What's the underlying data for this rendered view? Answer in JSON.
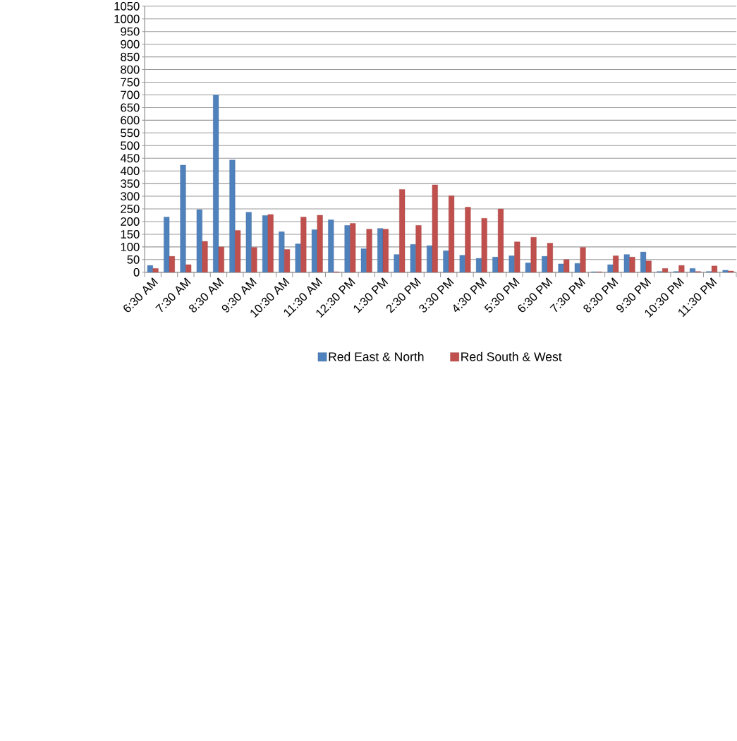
{
  "chart_data": {
    "type": "bar",
    "categories": [
      "6:30 AM",
      null,
      "7:30 AM",
      null,
      "8:30 AM",
      null,
      "9:30 AM",
      null,
      "10:30 AM",
      null,
      "11:30 AM",
      null,
      "12:30 PM",
      null,
      "1:30 PM",
      null,
      "2:30 PM",
      null,
      "3:30 PM",
      null,
      "4:30 PM",
      null,
      "5:30 PM",
      null,
      "6:30 PM",
      null,
      "7:30 PM",
      null,
      "8:30 PM",
      null,
      "9:30 PM",
      null,
      "10:30 PM",
      null,
      "11:30 PM",
      null
    ],
    "series": [
      {
        "name": "Red East & North",
        "color": "#4f81bd",
        "values": [
          27,
          218,
          423,
          247,
          700,
          443,
          237,
          224,
          160,
          112,
          168,
          207,
          185,
          93,
          173,
          70,
          110,
          105,
          85,
          67,
          55,
          60,
          65,
          37,
          63,
          33,
          35,
          2,
          30,
          70,
          80,
          3,
          3,
          15,
          3,
          8
        ]
      },
      {
        "name": "Red South & West",
        "color": "#c0504d",
        "values": [
          15,
          63,
          30,
          122,
          100,
          165,
          98,
          228,
          90,
          218,
          225,
          2,
          193,
          170,
          170,
          327,
          185,
          345,
          302,
          257,
          213,
          250,
          120,
          138,
          115,
          50,
          98,
          2,
          65,
          60,
          45,
          15,
          27,
          3,
          25,
          5
        ]
      }
    ],
    "ylim": [
      0,
      1050
    ],
    "yticks": [
      0,
      50,
      100,
      150,
      200,
      250,
      300,
      350,
      400,
      450,
      500,
      550,
      600,
      650,
      700,
      750,
      800,
      850,
      900,
      950,
      1000,
      1050
    ],
    "grid": "y",
    "legend": "bottom"
  }
}
